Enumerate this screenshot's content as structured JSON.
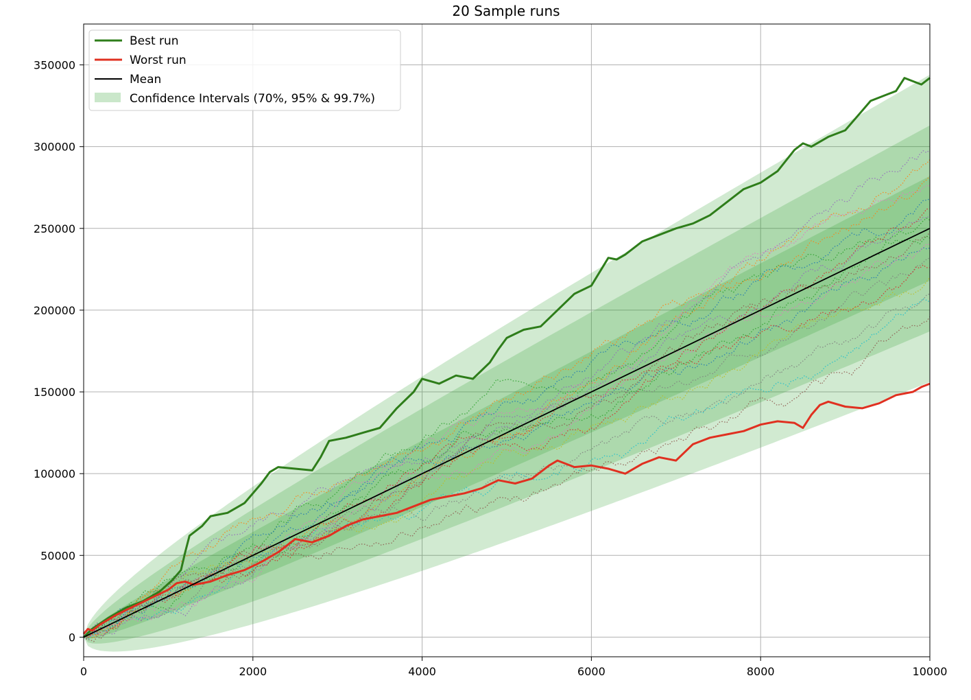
{
  "chart_data": {
    "type": "line",
    "title": "20 Sample runs",
    "xlabel": "",
    "ylabel": "",
    "xlim": [
      0,
      10000
    ],
    "ylim": [
      -12000,
      375000
    ],
    "xticks": [
      0,
      2000,
      4000,
      6000,
      8000,
      10000
    ],
    "yticks": [
      0,
      50000,
      100000,
      150000,
      200000,
      250000,
      300000,
      350000
    ],
    "grid": true,
    "legend_position": "top-left",
    "confidence_label": "Confidence Intervals (70%, 95% & 99.7%)",
    "confidence_bands": [
      {
        "level": 0.997,
        "half_width_at_10000": 94000
      },
      {
        "level": 0.95,
        "half_width_at_10000": 63000
      },
      {
        "level": 0.7,
        "half_width_at_10000": 32000
      }
    ],
    "mean": {
      "name": "Mean",
      "color": "#000000",
      "x": [
        0,
        10000
      ],
      "values": [
        0,
        250000
      ]
    },
    "best_run": {
      "name": "Best run",
      "color": "#2e7d1a",
      "x": [
        0,
        100,
        300,
        500,
        700,
        900,
        1050,
        1150,
        1200,
        1250,
        1400,
        1500,
        1700,
        1900,
        2100,
        2200,
        2300,
        2500,
        2700,
        2800,
        2900,
        3100,
        3300,
        3500,
        3700,
        3900,
        4000,
        4200,
        4400,
        4600,
        4800,
        4900,
        5000,
        5200,
        5400,
        5600,
        5800,
        6000,
        6200,
        6300,
        6400,
        6600,
        6800,
        7000,
        7200,
        7400,
        7600,
        7800,
        8000,
        8200,
        8400,
        8500,
        8600,
        8800,
        9000,
        9200,
        9300,
        9500,
        9600,
        9700,
        9800,
        9900,
        10000
      ],
      "values": [
        0,
        5000,
        12000,
        18000,
        22000,
        28000,
        35000,
        41000,
        52000,
        62000,
        68000,
        74000,
        76000,
        82000,
        94000,
        101000,
        104000,
        103000,
        102000,
        110000,
        120000,
        122000,
        125000,
        128000,
        140000,
        150000,
        158000,
        155000,
        160000,
        158000,
        168000,
        176000,
        183000,
        188000,
        190000,
        200000,
        210000,
        215000,
        232000,
        231000,
        234000,
        242000,
        246000,
        250000,
        253000,
        258000,
        266000,
        274000,
        278000,
        285000,
        298000,
        302000,
        300000,
        306000,
        310000,
        322000,
        328000,
        332000,
        334000,
        342000,
        340000,
        338000,
        342000
      ]
    },
    "worst_run": {
      "name": "Worst run",
      "color": "#e03020",
      "x": [
        0,
        50,
        100,
        200,
        400,
        600,
        800,
        1000,
        1100,
        1200,
        1300,
        1500,
        1700,
        1900,
        2100,
        2300,
        2500,
        2700,
        2900,
        3100,
        3300,
        3500,
        3700,
        3900,
        4100,
        4300,
        4500,
        4700,
        4900,
        5100,
        5300,
        5500,
        5600,
        5800,
        6000,
        6200,
        6400,
        6600,
        6800,
        7000,
        7200,
        7400,
        7600,
        7800,
        8000,
        8200,
        8400,
        8500,
        8600,
        8700,
        8800,
        9000,
        9200,
        9400,
        9600,
        9800,
        9900,
        10000
      ],
      "values": [
        2000,
        5000,
        4000,
        8000,
        14000,
        19000,
        24000,
        29000,
        33000,
        34000,
        32000,
        34000,
        38000,
        41000,
        46000,
        52000,
        60000,
        58000,
        62000,
        68000,
        72000,
        74000,
        76000,
        80000,
        84000,
        86000,
        88000,
        91000,
        96000,
        94000,
        97000,
        105000,
        108000,
        104000,
        105000,
        103000,
        100000,
        106000,
        110000,
        108000,
        118000,
        122000,
        124000,
        126000,
        130000,
        132000,
        131000,
        128000,
        136000,
        142000,
        144000,
        141000,
        140000,
        143000,
        148000,
        150000,
        153000,
        155000
      ]
    },
    "sample_series": [
      {
        "color": "#1f77b4",
        "end": 238000,
        "seed": 1
      },
      {
        "color": "#ff7f0e",
        "end": 292000,
        "seed": 2
      },
      {
        "color": "#2ca02c",
        "end": 255000,
        "seed": 3
      },
      {
        "color": "#d62728",
        "end": 262000,
        "seed": 4
      },
      {
        "color": "#9467bd",
        "end": 298000,
        "seed": 5
      },
      {
        "color": "#8c564b",
        "end": 248000,
        "seed": 6
      },
      {
        "color": "#e377c2",
        "end": 276000,
        "seed": 7
      },
      {
        "color": "#7f7f7f",
        "end": 232000,
        "seed": 8
      },
      {
        "color": "#bcbd22",
        "end": 220000,
        "seed": 9
      },
      {
        "color": "#17becf",
        "end": 205000,
        "seed": 10
      },
      {
        "color": "#1f77b4",
        "end": 268000,
        "seed": 11
      },
      {
        "color": "#ff7f0e",
        "end": 282000,
        "seed": 12
      },
      {
        "color": "#2ca02c",
        "end": 244000,
        "seed": 13
      },
      {
        "color": "#d62728",
        "end": 226000,
        "seed": 14
      },
      {
        "color": "#9467bd",
        "end": 258000,
        "seed": 15
      },
      {
        "color": "#8c564b",
        "end": 196000,
        "seed": 16
      },
      {
        "color": "#e377c2",
        "end": 240000,
        "seed": 17
      },
      {
        "color": "#7f7f7f",
        "end": 210000,
        "seed": 18
      }
    ],
    "band_color": "#2ca02c"
  }
}
